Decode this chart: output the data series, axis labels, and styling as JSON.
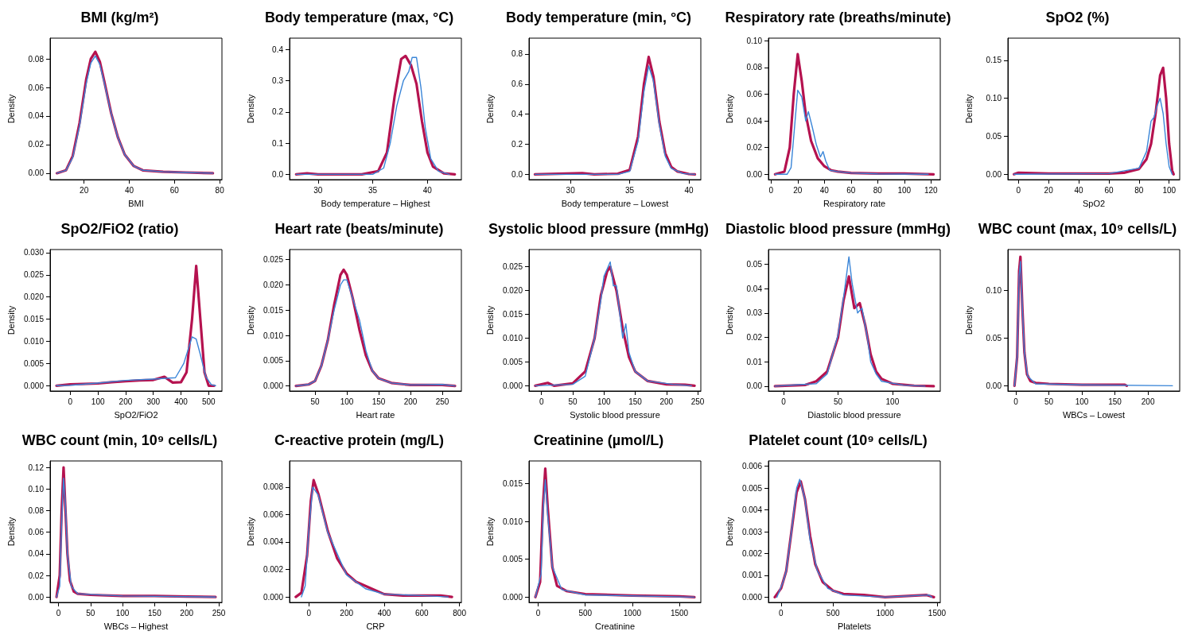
{
  "chart_data": [
    {
      "type": "line",
      "title": "BMI (kg/m²)",
      "xlabel": "BMI",
      "ylabel": "Density",
      "xlim": [
        5,
        81
      ],
      "xticks": [
        20,
        40,
        60,
        80
      ],
      "ylim": [
        -0.0045,
        0.0945
      ],
      "yticks": [
        {
          "value": 0,
          "label": "0.00"
        },
        {
          "value": 0.02,
          "label": "0.02"
        },
        {
          "value": 0.04,
          "label": "0.04"
        },
        {
          "value": 0.06,
          "label": "0.06"
        },
        {
          "value": 0.08,
          "label": "0.08"
        }
      ],
      "series": [
        {
          "color": "#3b86d8",
          "x": [
            8,
            12,
            15,
            18,
            21,
            23,
            25,
            27,
            29,
            32,
            35,
            38,
            42,
            46,
            55,
            65,
            77
          ],
          "values": [
            0,
            0.002,
            0.011,
            0.033,
            0.063,
            0.077,
            0.082,
            0.076,
            0.063,
            0.042,
            0.025,
            0.013,
            0.005,
            0.002,
            0.001,
            0.0005,
            0
          ]
        },
        {
          "color": "#b5124f",
          "x": [
            8,
            12,
            15,
            18,
            21,
            23,
            25,
            27,
            29,
            32,
            35,
            38,
            42,
            46,
            55,
            65,
            77
          ],
          "values": [
            0,
            0.002,
            0.012,
            0.035,
            0.066,
            0.08,
            0.085,
            0.078,
            0.064,
            0.042,
            0.025,
            0.013,
            0.005,
            0.002,
            0.001,
            0.0005,
            0
          ]
        }
      ]
    },
    {
      "type": "line",
      "title": "Body temperature (max, °C)",
      "xlabel": "Body temperature – Highest",
      "ylabel": "Density",
      "xlim": [
        27.4,
        43.1
      ],
      "xticks": [
        30,
        35,
        40
      ],
      "ylim": [
        -0.017,
        0.437
      ],
      "yticks": [
        {
          "value": 0,
          "label": "0.0"
        },
        {
          "value": 0.1,
          "label": "0.1"
        },
        {
          "value": 0.2,
          "label": "0.2"
        },
        {
          "value": 0.3,
          "label": "0.3"
        },
        {
          "value": 0.4,
          "label": "0.4"
        }
      ],
      "series": [
        {
          "color": "#3b86d8",
          "x": [
            28,
            35,
            36,
            36.6,
            37.2,
            37.8,
            38.3,
            38.6,
            39,
            39.4,
            39.8,
            40.3,
            41,
            42
          ],
          "values": [
            0,
            0,
            0.02,
            0.1,
            0.22,
            0.3,
            0.33,
            0.375,
            0.375,
            0.28,
            0.15,
            0.05,
            0.01,
            0
          ]
        },
        {
          "color": "#b5124f",
          "x": [
            28,
            29,
            30,
            34,
            35.5,
            36.3,
            37,
            37.6,
            38,
            38.5,
            39,
            39.5,
            40,
            40.5,
            41.5,
            42.5
          ],
          "values": [
            0,
            0.003,
            0,
            0,
            0.01,
            0.07,
            0.25,
            0.37,
            0.38,
            0.35,
            0.29,
            0.17,
            0.07,
            0.025,
            0.003,
            0
          ]
        }
      ]
    },
    {
      "type": "line",
      "title": "Body temperature (min, °C)",
      "xlabel": "Body temperature – Lowest",
      "ylabel": "Density",
      "xlim": [
        26.5,
        41
      ],
      "xticks": [
        30,
        35,
        40
      ],
      "ylim": [
        -0.035,
        0.905
      ],
      "yticks": [
        {
          "value": 0,
          "label": "0.0"
        },
        {
          "value": 0.2,
          "label": "0.2"
        },
        {
          "value": 0.4,
          "label": "0.4"
        },
        {
          "value": 0.6,
          "label": "0.6"
        },
        {
          "value": 0.8,
          "label": "0.8"
        }
      ],
      "series": [
        {
          "color": "#3b86d8",
          "x": [
            27,
            34,
            35,
            35.7,
            36.2,
            36.6,
            37,
            37.5,
            38,
            38.5,
            39.5,
            40.5
          ],
          "values": [
            0,
            0,
            0.02,
            0.22,
            0.55,
            0.72,
            0.62,
            0.33,
            0.12,
            0.04,
            0.005,
            0
          ]
        },
        {
          "color": "#b5124f",
          "x": [
            27,
            31,
            32,
            34,
            35,
            35.7,
            36.2,
            36.6,
            37,
            37.5,
            38,
            38.5,
            39,
            40,
            40.5
          ],
          "values": [
            0,
            0.008,
            0,
            0.004,
            0.03,
            0.25,
            0.6,
            0.78,
            0.65,
            0.35,
            0.14,
            0.05,
            0.02,
            0.002,
            0
          ]
        }
      ]
    },
    {
      "type": "line",
      "title": "Respiratory rate (breaths/minute)",
      "xlabel": "Respiratory rate",
      "ylabel": "Density",
      "xlim": [
        -2,
        127
      ],
      "xticks": [
        0,
        20,
        40,
        60,
        80,
        100,
        120
      ],
      "ylim": [
        -0.004,
        0.102
      ],
      "yticks": [
        {
          "value": 0,
          "label": "0.00"
        },
        {
          "value": 0.02,
          "label": "0.02"
        },
        {
          "value": 0.04,
          "label": "0.04"
        },
        {
          "value": 0.06,
          "label": "0.06"
        },
        {
          "value": 0.08,
          "label": "0.08"
        },
        {
          "value": 0.1,
          "label": "0.10"
        }
      ],
      "series": [
        {
          "color": "#3b86d8",
          "x": [
            3,
            12,
            15,
            18,
            20,
            23,
            26,
            28,
            31,
            34,
            37,
            39,
            41,
            44,
            50,
            60,
            80,
            118
          ],
          "values": [
            0,
            0,
            0.005,
            0.04,
            0.063,
            0.058,
            0.04,
            0.047,
            0.035,
            0.022,
            0.013,
            0.017,
            0.01,
            0.003,
            0.002,
            0.001,
            0.0003,
            0
          ]
        },
        {
          "color": "#b5124f",
          "x": [
            3,
            10,
            14,
            17,
            20,
            23,
            26,
            30,
            35,
            40,
            45,
            50,
            60,
            80,
            100,
            122
          ],
          "values": [
            0,
            0.002,
            0.02,
            0.06,
            0.09,
            0.07,
            0.045,
            0.025,
            0.012,
            0.006,
            0.003,
            0.002,
            0.001,
            0.0005,
            0.0005,
            0
          ]
        }
      ]
    },
    {
      "type": "line",
      "title": "SpO2 (%)",
      "xlabel": "SpO2",
      "ylabel": "Density",
      "xlim": [
        -7,
        107
      ],
      "xticks": [
        0,
        20,
        40,
        60,
        80,
        100
      ],
      "ylim": [
        -0.007,
        0.179
      ],
      "yticks": [
        {
          "value": 0,
          "label": "0.00"
        },
        {
          "value": 0.05,
          "label": "0.05"
        },
        {
          "value": 0.1,
          "label": "0.10"
        },
        {
          "value": 0.15,
          "label": "0.15"
        }
      ],
      "series": [
        {
          "color": "#3b86d8",
          "x": [
            -3,
            60,
            80,
            85,
            88,
            90,
            92,
            94,
            96,
            98,
            100,
            102
          ],
          "values": [
            0,
            0.001,
            0.008,
            0.03,
            0.07,
            0.075,
            0.09,
            0.1,
            0.08,
            0.04,
            0.01,
            0
          ]
        },
        {
          "color": "#b5124f",
          "x": [
            -3,
            0,
            20,
            40,
            60,
            70,
            80,
            85,
            88,
            91,
            94,
            96,
            98,
            100,
            102,
            103
          ],
          "values": [
            0,
            0.002,
            0.001,
            0.001,
            0.001,
            0.002,
            0.007,
            0.02,
            0.04,
            0.08,
            0.13,
            0.14,
            0.1,
            0.04,
            0.005,
            0
          ]
        }
      ]
    },
    {
      "type": "line",
      "title": "SpO2/FiO2 (ratio)",
      "xlabel": "SpO2/FiO2",
      "ylabel": "Density",
      "xlim": [
        -73,
        548
      ],
      "xticks": [
        0,
        100,
        200,
        300,
        400,
        500
      ],
      "ylim": [
        -0.0012,
        0.0307
      ],
      "yticks": [
        {
          "value": 0,
          "label": "0.000"
        },
        {
          "value": 0.005,
          "label": "0.005"
        },
        {
          "value": 0.01,
          "label": "0.010"
        },
        {
          "value": 0.015,
          "label": "0.015"
        },
        {
          "value": 0.02,
          "label": "0.020"
        },
        {
          "value": 0.025,
          "label": "0.025"
        },
        {
          "value": 0.03,
          "label": "0.030"
        }
      ],
      "series": [
        {
          "color": "#3b86d8",
          "x": [
            -50,
            0,
            100,
            200,
            300,
            380,
            410,
            440,
            455,
            470,
            490,
            510,
            525
          ],
          "values": [
            0,
            0.0001,
            0.0006,
            0.0012,
            0.0015,
            0.0018,
            0.005,
            0.011,
            0.0105,
            0.007,
            0.002,
            0.0002,
            0
          ]
        },
        {
          "color": "#b5124f",
          "x": [
            -50,
            0,
            100,
            150,
            200,
            250,
            300,
            340,
            370,
            400,
            420,
            440,
            455,
            470,
            485,
            500,
            520
          ],
          "values": [
            0,
            0.0003,
            0.0005,
            0.0008,
            0.001,
            0.0012,
            0.0013,
            0.002,
            0.0007,
            0.0008,
            0.003,
            0.015,
            0.027,
            0.015,
            0.003,
            0,
            0
          ]
        }
      ]
    },
    {
      "type": "line",
      "title": "Heart rate (beats/minute)",
      "xlabel": "Heart rate",
      "ylabel": "Density",
      "xlim": [
        10,
        280
      ],
      "xticks": [
        50,
        100,
        150,
        200,
        250
      ],
      "ylim": [
        -0.001,
        0.027
      ],
      "yticks": [
        {
          "value": 0,
          "label": "0.000"
        },
        {
          "value": 0.005,
          "label": "0.005"
        },
        {
          "value": 0.01,
          "label": "0.010"
        },
        {
          "value": 0.015,
          "label": "0.015"
        },
        {
          "value": 0.02,
          "label": "0.020"
        },
        {
          "value": 0.025,
          "label": "0.025"
        }
      ],
      "series": [
        {
          "color": "#3b86d8",
          "x": [
            20,
            40,
            50,
            60,
            70,
            80,
            90,
            95,
            100,
            110,
            120,
            130,
            140,
            150,
            170,
            200,
            250,
            270
          ],
          "values": [
            0,
            0.0003,
            0.001,
            0.004,
            0.009,
            0.015,
            0.02,
            0.021,
            0.021,
            0.017,
            0.013,
            0.007,
            0.003,
            0.0015,
            0.0006,
            0.0002,
            0.0003,
            0
          ]
        },
        {
          "color": "#b5124f",
          "x": [
            20,
            40,
            50,
            60,
            70,
            80,
            90,
            95,
            100,
            110,
            120,
            130,
            140,
            150,
            170,
            200,
            250,
            270
          ],
          "values": [
            0,
            0.0003,
            0.001,
            0.004,
            0.009,
            0.016,
            0.022,
            0.023,
            0.022,
            0.017,
            0.011,
            0.006,
            0.003,
            0.0015,
            0.0006,
            0.0002,
            0.0002,
            0
          ]
        }
      ]
    },
    {
      "type": "line",
      "title": "Systolic blood pressure (mmHg)",
      "xlabel": "Systolic blood pressure",
      "ylabel": "Density",
      "xlim": [
        -20,
        255
      ],
      "xticks": [
        0,
        50,
        100,
        150,
        200,
        250
      ],
      "ylim": [
        -0.0011,
        0.0286
      ],
      "yticks": [
        {
          "value": 0,
          "label": "0.000"
        },
        {
          "value": 0.005,
          "label": "0.005"
        },
        {
          "value": 0.01,
          "label": "0.010"
        },
        {
          "value": 0.015,
          "label": "0.015"
        },
        {
          "value": 0.02,
          "label": "0.020"
        },
        {
          "value": 0.025,
          "label": "0.025"
        }
      ],
      "series": [
        {
          "color": "#3b86d8",
          "x": [
            -10,
            50,
            70,
            85,
            95,
            100,
            110,
            115,
            120,
            130,
            135,
            140,
            150,
            170,
            210,
            240
          ],
          "values": [
            0,
            0.0003,
            0.002,
            0.01,
            0.018,
            0.023,
            0.026,
            0.021,
            0.021,
            0.01,
            0.013,
            0.007,
            0.003,
            0.001,
            0.0003,
            0
          ]
        },
        {
          "color": "#b5124f",
          "x": [
            -10,
            10,
            20,
            50,
            70,
            85,
            95,
            105,
            110,
            120,
            130,
            140,
            150,
            170,
            200,
            230,
            245
          ],
          "values": [
            0,
            0.0006,
            0,
            0.0005,
            0.003,
            0.01,
            0.019,
            0.024,
            0.025,
            0.02,
            0.012,
            0.006,
            0.003,
            0.001,
            0.0003,
            0.0002,
            0
          ]
        }
      ]
    },
    {
      "type": "line",
      "title": "Diastolic blood pressure (mmHg)",
      "xlabel": "Diastolic blood pressure",
      "ylabel": "Density",
      "xlim": [
        -14,
        144
      ],
      "xticks": [
        0,
        50,
        100
      ],
      "ylim": [
        -0.002,
        0.056
      ],
      "yticks": [
        {
          "value": 0,
          "label": "0.00"
        },
        {
          "value": 0.01,
          "label": "0.01"
        },
        {
          "value": 0.02,
          "label": "0.02"
        },
        {
          "value": 0.03,
          "label": "0.03"
        },
        {
          "value": 0.04,
          "label": "0.04"
        },
        {
          "value": 0.05,
          "label": "0.05"
        }
      ],
      "series": [
        {
          "color": "#3b86d8",
          "x": [
            -8,
            30,
            40,
            50,
            55,
            60,
            63,
            68,
            72,
            77,
            80,
            85,
            90,
            110,
            130
          ],
          "values": [
            0,
            0.001,
            0.005,
            0.021,
            0.036,
            0.053,
            0.042,
            0.03,
            0.032,
            0.02,
            0.01,
            0.005,
            0.002,
            0.0004,
            0
          ]
        },
        {
          "color": "#b5124f",
          "x": [
            -8,
            20,
            30,
            40,
            50,
            55,
            60,
            65,
            70,
            75,
            80,
            85,
            90,
            100,
            120,
            138
          ],
          "values": [
            0,
            0.0005,
            0.002,
            0.006,
            0.02,
            0.035,
            0.045,
            0.032,
            0.034,
            0.025,
            0.013,
            0.006,
            0.003,
            0.001,
            0.0002,
            0
          ]
        }
      ]
    },
    {
      "type": "line",
      "title": "WBC count (max, 10⁹ cells/L)",
      "xlabel": "WBCs – Lowest",
      "ylabel": "Density",
      "xlim": [
        -12,
        248
      ],
      "xticks": [
        0,
        50,
        100,
        150,
        200
      ],
      "ylim": [
        -0.0055,
        0.1425
      ],
      "yticks": [
        {
          "value": 0,
          "label": "0.00"
        },
        {
          "value": 0.05,
          "label": "0.05"
        },
        {
          "value": 0.1,
          "label": "0.10"
        }
      ],
      "series": [
        {
          "color": "#3b86d8",
          "x": [
            -2,
            2,
            5,
            7,
            10,
            13,
            18,
            30,
            100,
            237
          ],
          "values": [
            0,
            0.03,
            0.115,
            0.13,
            0.08,
            0.035,
            0.01,
            0.002,
            0.001,
            0
          ]
        },
        {
          "color": "#b5124f",
          "x": [
            -2,
            2,
            5,
            7,
            10,
            13,
            17,
            22,
            30,
            50,
            100,
            165,
            168
          ],
          "values": [
            0,
            0.03,
            0.12,
            0.135,
            0.08,
            0.035,
            0.012,
            0.005,
            0.003,
            0.002,
            0.001,
            0.001,
            0
          ]
        }
      ]
    },
    {
      "type": "line",
      "title": "WBC count (min, 10⁹ cells/L)",
      "xlabel": "WBCs – Highest",
      "ylabel": "Density",
      "xlim": [
        -13,
        255
      ],
      "xticks": [
        0,
        50,
        100,
        150,
        200,
        250
      ],
      "ylim": [
        -0.005,
        0.126
      ],
      "yticks": [
        {
          "value": 0,
          "label": "0.00"
        },
        {
          "value": 0.02,
          "label": "0.02"
        },
        {
          "value": 0.04,
          "label": "0.04"
        },
        {
          "value": 0.06,
          "label": "0.06"
        },
        {
          "value": 0.08,
          "label": "0.08"
        },
        {
          "value": 0.1,
          "label": "0.10"
        },
        {
          "value": 0.12,
          "label": "0.12"
        }
      ],
      "series": [
        {
          "color": "#3b86d8",
          "x": [
            -3,
            2,
            5,
            8,
            11,
            14,
            20,
            30,
            100,
            245
          ],
          "values": [
            0,
            0.01,
            0.07,
            0.11,
            0.085,
            0.04,
            0.01,
            0.003,
            0.001,
            0
          ]
        },
        {
          "color": "#b5124f",
          "x": [
            -3,
            2,
            5,
            8,
            11,
            14,
            18,
            24,
            30,
            50,
            100,
            150,
            200,
            245
          ],
          "values": [
            0,
            0.02,
            0.08,
            0.12,
            0.08,
            0.04,
            0.015,
            0.005,
            0.003,
            0.002,
            0.001,
            0.001,
            0.0005,
            0
          ]
        }
      ]
    },
    {
      "type": "line",
      "title": "C-reactive protein (mg/L)",
      "xlabel": "CRP",
      "ylabel": "Density",
      "xlim": [
        -103,
        810
      ],
      "xticks": [
        0,
        200,
        400,
        600,
        800
      ],
      "ylim": [
        -0.0004,
        0.0099
      ],
      "yticks": [
        {
          "value": 0,
          "label": "0.000"
        },
        {
          "value": 0.002,
          "label": "0.002"
        },
        {
          "value": 0.004,
          "label": "0.004"
        },
        {
          "value": 0.006,
          "label": "0.006"
        },
        {
          "value": 0.008,
          "label": "0.008"
        }
      ],
      "series": [
        {
          "color": "#3b86d8",
          "x": [
            -40,
            -20,
            0,
            20,
            50,
            100,
            200,
            300,
            400,
            600,
            740
          ],
          "values": [
            0,
            0.0008,
            0.005,
            0.008,
            0.0074,
            0.0047,
            0.0016,
            0.0006,
            0.0002,
            0.0001,
            0
          ]
        },
        {
          "color": "#b5124f",
          "x": [
            -70,
            -40,
            -10,
            10,
            25,
            50,
            100,
            150,
            200,
            250,
            300,
            350,
            400,
            500,
            700,
            760
          ],
          "values": [
            0,
            0.0003,
            0.003,
            0.007,
            0.0085,
            0.0075,
            0.0048,
            0.0028,
            0.0017,
            0.0011,
            0.0008,
            0.0005,
            0.0002,
            0.0001,
            0.0001,
            0
          ]
        }
      ]
    },
    {
      "type": "line",
      "title": "Creatinine (µmol/L)",
      "xlabel": "Creatinine",
      "ylabel": "Density",
      "xlim": [
        -98,
        1728
      ],
      "xticks": [
        0,
        500,
        1000,
        1500
      ],
      "ylim": [
        -0.0007,
        0.018
      ],
      "yticks": [
        {
          "value": 0,
          "label": "0.000"
        },
        {
          "value": 0.005,
          "label": "0.005"
        },
        {
          "value": 0.01,
          "label": "0.010"
        },
        {
          "value": 0.015,
          "label": "0.015"
        }
      ],
      "series": [
        {
          "color": "#3b86d8",
          "x": [
            -30,
            30,
            55,
            75,
            100,
            150,
            250,
            500,
            1660
          ],
          "values": [
            0,
            0.003,
            0.012,
            0.0155,
            0.011,
            0.004,
            0.001,
            0.0003,
            0
          ]
        },
        {
          "color": "#b5124f",
          "x": [
            -30,
            20,
            50,
            75,
            100,
            150,
            200,
            300,
            500,
            1000,
            1500,
            1660
          ],
          "values": [
            0,
            0.002,
            0.012,
            0.017,
            0.012,
            0.004,
            0.0015,
            0.0008,
            0.0004,
            0.0002,
            0.0001,
            0
          ]
        }
      ]
    },
    {
      "type": "line",
      "title": "Platelet count (10⁹ cells/L)",
      "xlabel": "Platelets",
      "ylabel": "Density",
      "xlim": [
        -121,
        1531
      ],
      "xticks": [
        0,
        500,
        1000,
        1500
      ],
      "ylim": [
        -0.00024,
        0.00624
      ],
      "yticks": [
        {
          "value": 0,
          "label": "0.000"
        },
        {
          "value": 0.001,
          "label": "0.001"
        },
        {
          "value": 0.002,
          "label": "0.002"
        },
        {
          "value": 0.003,
          "label": "0.003"
        },
        {
          "value": 0.004,
          "label": "0.004"
        },
        {
          "value": 0.005,
          "label": "0.005"
        },
        {
          "value": 0.006,
          "label": "0.006"
        }
      ],
      "series": [
        {
          "color": "#3b86d8",
          "x": [
            -40,
            20,
            50,
            100,
            150,
            180,
            230,
            280,
            350,
            450,
            600,
            1000,
            1420,
            1450
          ],
          "values": [
            0,
            0.0007,
            0.0012,
            0.003,
            0.005,
            0.0054,
            0.0045,
            0.0026,
            0.0012,
            0.0004,
            0.0001,
            0,
            0.0001,
            0
          ]
        },
        {
          "color": "#b5124f",
          "x": [
            -60,
            0,
            50,
            100,
            150,
            190,
            230,
            280,
            330,
            400,
            500,
            600,
            800,
            1000,
            1400,
            1470
          ],
          "values": [
            0,
            0.0004,
            0.0012,
            0.003,
            0.0048,
            0.0053,
            0.0045,
            0.0028,
            0.0015,
            0.0007,
            0.0003,
            0.00015,
            0.0001,
            0,
            0.0001,
            0
          ]
        }
      ]
    }
  ]
}
